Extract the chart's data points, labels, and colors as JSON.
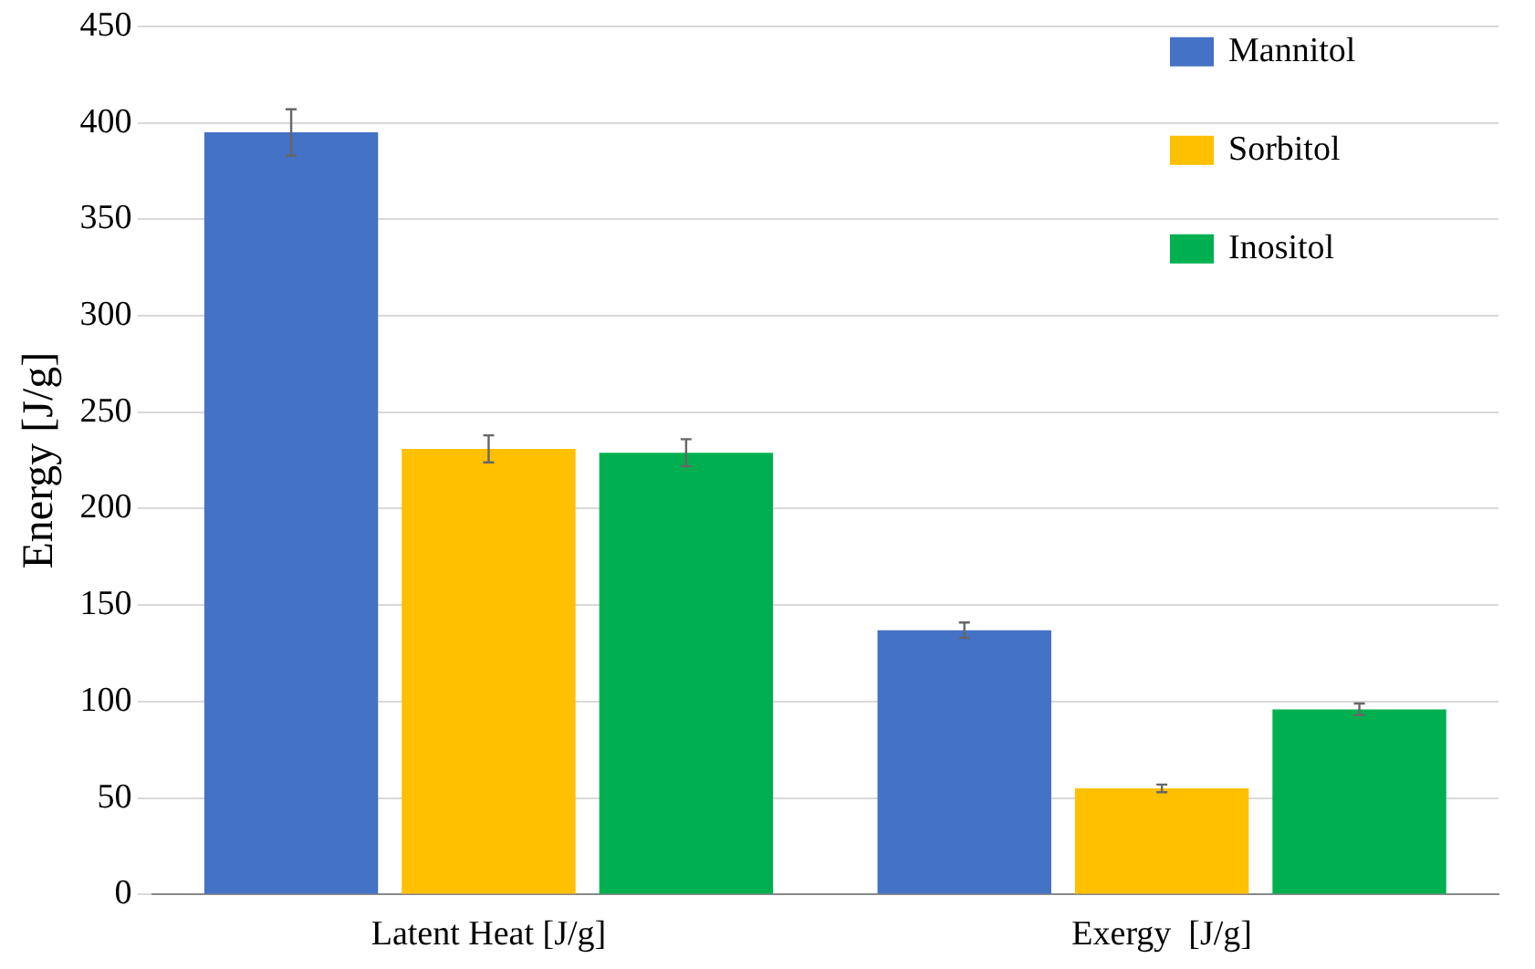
{
  "chart_data": {
    "type": "bar",
    "ylabel": "Energy [J/g]",
    "categories": [
      "Latent Heat [J/g]",
      "Exergy  [J/g]"
    ],
    "series": [
      {
        "name": "Mannitol",
        "color": "#4472c4",
        "values": [
          395,
          137
        ],
        "errors": [
          12,
          4
        ]
      },
      {
        "name": "Sorbitol",
        "color": "#ffc000",
        "values": [
          231,
          55
        ],
        "errors": [
          7,
          2
        ]
      },
      {
        "name": "Inositol",
        "color": "#00b050",
        "values": [
          229,
          96
        ],
        "errors": [
          7,
          3
        ]
      }
    ],
    "ylim": [
      0,
      450
    ],
    "yticks": [
      0,
      50,
      100,
      150,
      200,
      250,
      300,
      350,
      400,
      450
    ],
    "grid": "y",
    "legend": "top right"
  }
}
